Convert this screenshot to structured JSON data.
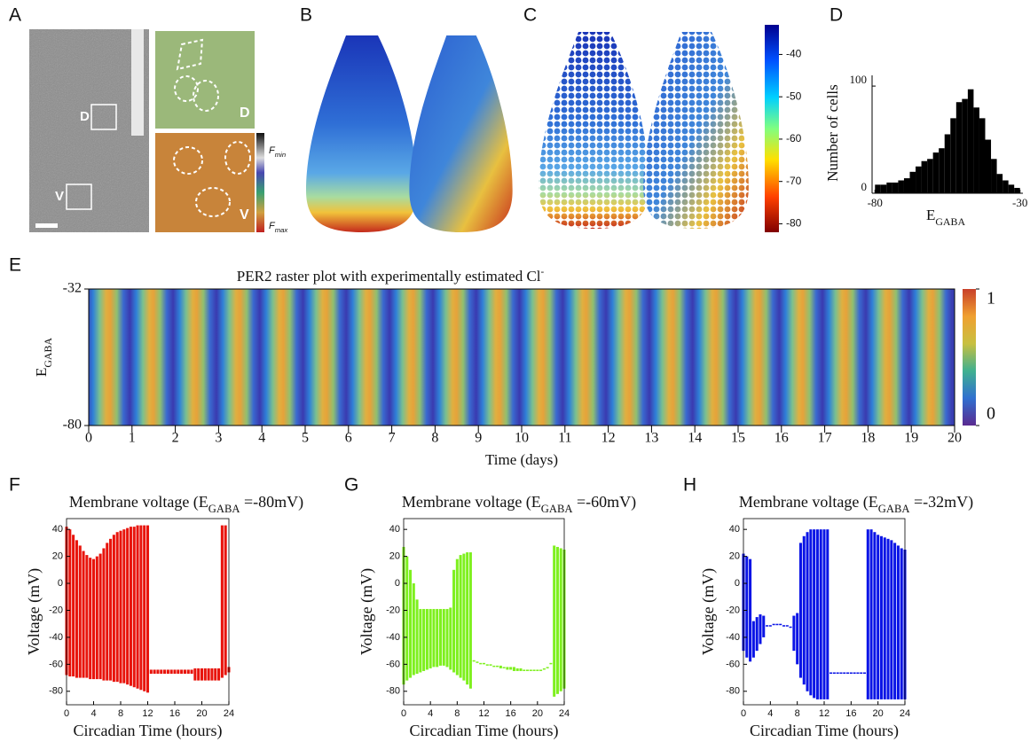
{
  "panel_labels": [
    "A",
    "B",
    "C",
    "D",
    "E",
    "F",
    "G",
    "H"
  ],
  "panel_a": {
    "box_labels": [
      "D",
      "V"
    ],
    "inset_labels": [
      "D",
      "V"
    ],
    "colorbar_labels": [
      {
        "main": "F",
        "sub": "min"
      },
      {
        "main": "F",
        "sub": "max"
      }
    ]
  },
  "chart_data": [
    {
      "type": "colorbar",
      "ylim": [
        -82,
        -33
      ],
      "yticks": [
        -40,
        -50,
        -60,
        -70,
        -80
      ]
    },
    {
      "type": "histogram",
      "ylabel": "Number of cells",
      "xlabel": {
        "main": "E",
        "sub": "GABA"
      },
      "bins": [
        -80,
        -78,
        -76,
        -74,
        -72,
        -70,
        -68,
        -66,
        -64,
        -62,
        -60,
        -58,
        -56,
        -54,
        -52,
        -50,
        -48,
        -46,
        -44,
        -42,
        -40,
        -38,
        -36,
        -34,
        -32,
        -30
      ],
      "counts": [
        8,
        8,
        10,
        10,
        12,
        14,
        20,
        25,
        30,
        32,
        38,
        42,
        55,
        70,
        85,
        88,
        97,
        80,
        70,
        50,
        32,
        18,
        12,
        8,
        5
      ],
      "color": "#000000",
      "xlim": [
        -81,
        -29
      ],
      "xticks": [
        -80,
        -30
      ],
      "ylim": [
        0,
        110
      ],
      "yticks": [
        0,
        100
      ]
    },
    {
      "type": "heatmap",
      "title": {
        "main": "PER2 raster plot with experimentally estimated Cl",
        "sup": "-"
      },
      "ylabel": {
        "main": "E",
        "sub": "GABA"
      },
      "xlabel": "Time (days)",
      "xlim": [
        0,
        20
      ],
      "xticks": [
        0,
        1,
        2,
        3,
        4,
        5,
        6,
        7,
        8,
        9,
        10,
        11,
        12,
        13,
        14,
        15,
        16,
        17,
        18,
        19,
        20
      ],
      "ylim": [
        -80,
        -32
      ],
      "yticks": [
        -32,
        -80
      ],
      "colorbar": {
        "ylim": [
          0,
          1
        ],
        "yticks": [
          1,
          0
        ]
      }
    },
    {
      "type": "band",
      "title": {
        "main": "Membrane voltage (E",
        "sub": "GABA",
        "rest": " =-80mV)"
      },
      "ylabel": "Voltage (mV)",
      "xlabel": "Circadian Time (hours)",
      "color": "#e8140c",
      "xlim": [
        0,
        24
      ],
      "xticks": [
        0,
        4,
        8,
        12,
        16,
        20,
        24
      ],
      "ylim": [
        -90,
        48
      ],
      "yticks": [
        40,
        20,
        0,
        -20,
        -40,
        -60,
        -80
      ],
      "x": [
        0,
        0.5,
        1,
        1.5,
        2,
        2.5,
        3,
        3.5,
        4,
        4.5,
        5,
        5.5,
        6,
        6.5,
        7,
        7.5,
        8,
        8.5,
        9,
        9.5,
        10,
        10.5,
        11,
        11.5,
        12,
        12.5,
        13,
        13.5,
        14,
        14.5,
        15,
        15.5,
        16,
        16.5,
        17,
        17.5,
        18,
        18.5,
        19,
        19.5,
        20,
        20.5,
        21,
        21.5,
        22,
        22.5,
        23,
        23.5,
        24
      ],
      "upper": [
        42,
        40,
        36,
        32,
        28,
        24,
        21,
        19,
        18,
        20,
        22,
        26,
        30,
        33,
        36,
        38,
        39,
        40,
        41,
        42,
        42,
        43,
        43,
        43,
        43,
        -64,
        -64,
        -64,
        -64,
        -64,
        -64,
        -64,
        -64,
        -64,
        -64,
        -64,
        -64,
        -64,
        -63,
        -63,
        -63,
        -63,
        -63,
        -63,
        -63,
        -63,
        43,
        43,
        -62
      ],
      "lower": [
        -68,
        -69,
        -69,
        -70,
        -70,
        -70,
        -70,
        -71,
        -71,
        -71,
        -71,
        -72,
        -72,
        -72,
        -73,
        -73,
        -74,
        -74,
        -75,
        -76,
        -77,
        -78,
        -79,
        -80,
        -81,
        -67,
        -67,
        -67,
        -67,
        -67,
        -67,
        -67,
        -67,
        -67,
        -67,
        -67,
        -67,
        -67,
        -72,
        -72,
        -72,
        -72,
        -72,
        -72,
        -72,
        -72,
        -70,
        -68,
        -66
      ]
    },
    {
      "type": "band",
      "title": {
        "main": "Membrane voltage (E",
        "sub": "GABA",
        "rest": " =-60mV)"
      },
      "ylabel": "Voltage (mV)",
      "xlabel": "Circadian Time (hours)",
      "color": "#7ef01e",
      "xlim": [
        0,
        24
      ],
      "xticks": [
        0,
        4,
        8,
        12,
        16,
        20,
        24
      ],
      "ylim": [
        -90,
        48
      ],
      "yticks": [
        40,
        20,
        0,
        -20,
        -40,
        -60,
        -80
      ],
      "x": [
        0,
        0.5,
        1,
        1.5,
        2,
        2.5,
        3,
        3.5,
        4,
        4.5,
        5,
        5.5,
        6,
        6.5,
        7,
        7.5,
        8,
        8.5,
        9,
        9.5,
        10,
        10.5,
        11,
        11.5,
        12,
        12.5,
        13,
        13.5,
        14,
        14.5,
        15,
        15.5,
        16,
        16.5,
        17,
        17.5,
        18,
        18.5,
        19,
        19.5,
        20,
        20.5,
        21,
        21.5,
        22,
        22.5,
        23,
        23.5,
        24
      ],
      "upper": [
        27,
        20,
        10,
        0,
        -12,
        -19,
        -19,
        -19,
        -19,
        -19,
        -19,
        -19,
        -19,
        -19,
        -18,
        10,
        18,
        21,
        22,
        23,
        23,
        -57,
        -58,
        -59,
        -59,
        -60,
        -60,
        -61,
        -61,
        -61,
        -62,
        -62,
        -62,
        -62,
        -63,
        -63,
        -64,
        -64,
        -64,
        -64,
        -64,
        -64,
        -63,
        -62,
        -59,
        28,
        27,
        26,
        25
      ],
      "lower": [
        -75,
        -72,
        -70,
        -68,
        -67,
        -66,
        -65,
        -64,
        -63,
        -62,
        -62,
        -61,
        -61,
        -62,
        -64,
        -66,
        -68,
        -70,
        -72,
        -75,
        -78,
        -58,
        -59,
        -60,
        -60,
        -61,
        -61,
        -62,
        -62,
        -63,
        -63,
        -64,
        -64,
        -65,
        -65,
        -65,
        -65,
        -65,
        -65,
        -65,
        -65,
        -65,
        -64,
        -63,
        -60,
        -84,
        -82,
        -80,
        -78
      ]
    },
    {
      "type": "band",
      "title": {
        "main": "Membrane voltage (E",
        "sub": "GABA",
        "rest": " =-32mV)"
      },
      "ylabel": "Voltage (mV)",
      "xlabel": "Circadian Time (hours)",
      "color": "#0a14e6",
      "xlim": [
        0,
        24
      ],
      "xticks": [
        0,
        4,
        8,
        12,
        16,
        20,
        24
      ],
      "ylim": [
        -90,
        48
      ],
      "yticks": [
        40,
        20,
        0,
        -20,
        -40,
        -60,
        -80
      ],
      "x": [
        0,
        0.5,
        1,
        1.5,
        2,
        2.5,
        3,
        3.5,
        4,
        4.5,
        5,
        5.5,
        6,
        6.5,
        7,
        7.5,
        8,
        8.5,
        9,
        9.5,
        10,
        10.5,
        11,
        11.5,
        12,
        12.5,
        13,
        13.5,
        14,
        14.5,
        15,
        15.5,
        16,
        16.5,
        17,
        17.5,
        18,
        18.5,
        19,
        19.5,
        20,
        20.5,
        21,
        21.5,
        22,
        22.5,
        23,
        23.5,
        24
      ],
      "upper": [
        22,
        20,
        18,
        -28,
        -25,
        -23,
        -24,
        -31,
        -31,
        -30,
        -30,
        -30,
        -31,
        -31,
        -32,
        -24,
        -22,
        30,
        35,
        38,
        40,
        40,
        40,
        40,
        40,
        40,
        -66,
        -66,
        -66,
        -66,
        -66,
        -66,
        -66,
        -66,
        -66,
        -66,
        -66,
        40,
        40,
        38,
        36,
        35,
        34,
        33,
        32,
        30,
        28,
        26,
        25
      ],
      "lower": [
        -50,
        -55,
        -58,
        -55,
        -50,
        -45,
        -40,
        -32,
        -32,
        -31,
        -31,
        -31,
        -32,
        -32,
        -33,
        -50,
        -60,
        -70,
        -75,
        -80,
        -83,
        -85,
        -86,
        -86,
        -86,
        -86,
        -67,
        -67,
        -67,
        -67,
        -67,
        -67,
        -67,
        -67,
        -67,
        -67,
        -67,
        -86,
        -86,
        -86,
        -86,
        -86,
        -86,
        -86,
        -86,
        -86,
        -86,
        -86,
        -86
      ]
    }
  ]
}
